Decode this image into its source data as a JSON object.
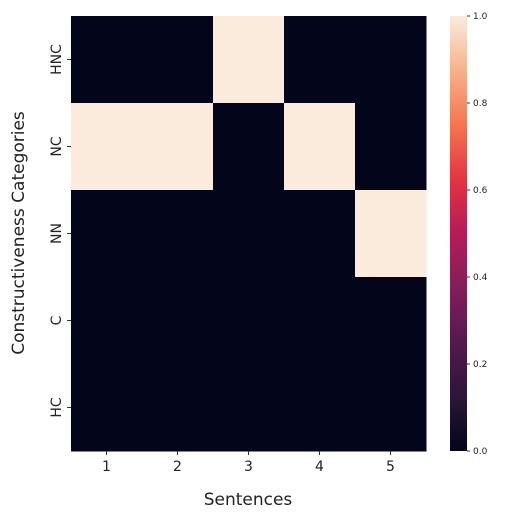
{
  "chart_data": {
    "type": "heatmap",
    "title": "",
    "xlabel": "Sentences",
    "ylabel": "Constructiveness Categories",
    "x_categories": [
      "1",
      "2",
      "3",
      "4",
      "5"
    ],
    "y_categories": [
      "HNC",
      "NC",
      "NN",
      "C",
      "HC"
    ],
    "values": [
      [
        0,
        0,
        1,
        0,
        0
      ],
      [
        1,
        1,
        0,
        1,
        0
      ],
      [
        0,
        0,
        0,
        0,
        1
      ],
      [
        0,
        0,
        0,
        0,
        0
      ],
      [
        0,
        0,
        0,
        0,
        0
      ]
    ],
    "colorbar": {
      "range": [
        0.0,
        1.0
      ],
      "ticks": [
        "0.0",
        "0.2",
        "0.4",
        "0.6",
        "0.8",
        "1.0"
      ]
    },
    "grid": false,
    "legend": "colorbar-right"
  }
}
